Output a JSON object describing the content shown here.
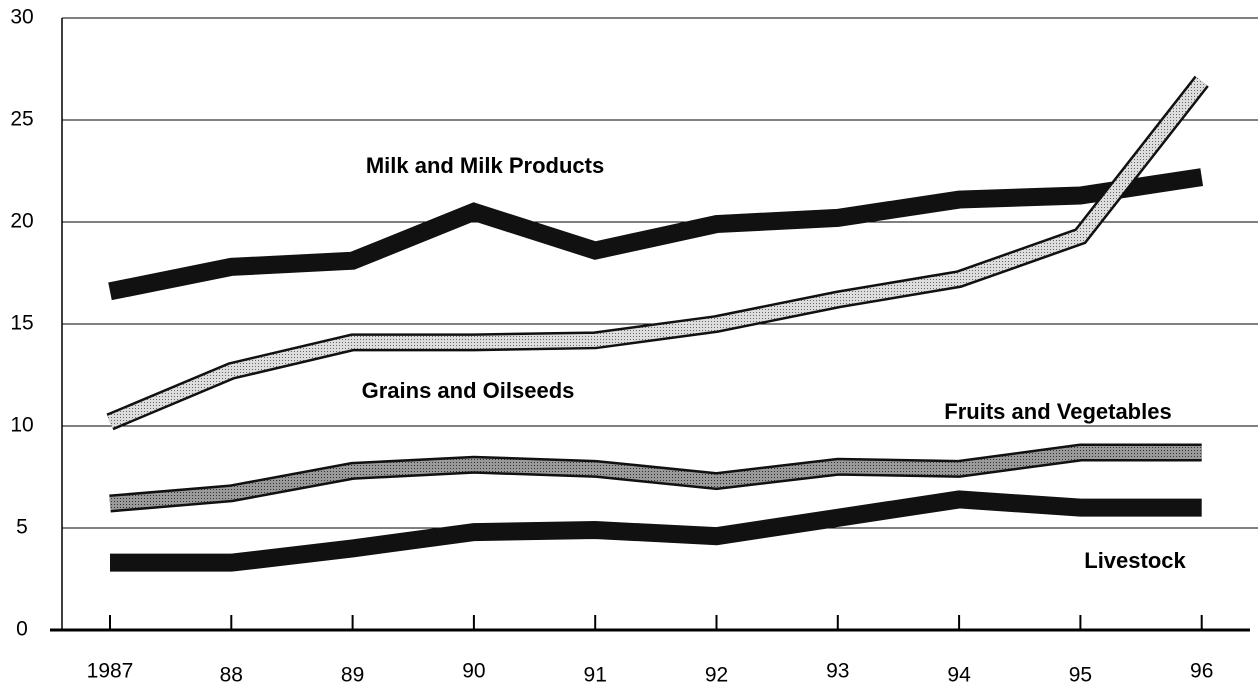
{
  "chart_data": {
    "type": "line",
    "categories": [
      "1987",
      "88",
      "89",
      "90",
      "91",
      "92",
      "93",
      "94",
      "95",
      "96"
    ],
    "series": [
      {
        "name": "Milk and Milk Products",
        "color": "#111111",
        "values": [
          16.6,
          17.8,
          18.1,
          20.5,
          18.6,
          19.9,
          20.2,
          21.1,
          21.3,
          22.2
        ]
      },
      {
        "name": "Grains and Oilseeds",
        "color": "#cccccc",
        "values": [
          10.2,
          12.7,
          14.1,
          14.1,
          14.2,
          15.0,
          16.2,
          17.2,
          19.3,
          26.9
        ]
      },
      {
        "name": "Fruits and Vegetables",
        "color": "#888888",
        "values": [
          6.2,
          6.7,
          7.8,
          8.1,
          7.9,
          7.3,
          8.0,
          7.9,
          8.7,
          8.7
        ]
      },
      {
        "name": "Livestock",
        "color": "#111111",
        "values": [
          3.3,
          3.3,
          4.0,
          4.8,
          4.9,
          4.6,
          5.5,
          6.4,
          6.0,
          6.0
        ]
      }
    ],
    "ylim": [
      0,
      30
    ],
    "yticks": [
      0,
      5,
      10,
      15,
      20,
      25,
      30
    ],
    "grid": true
  }
}
